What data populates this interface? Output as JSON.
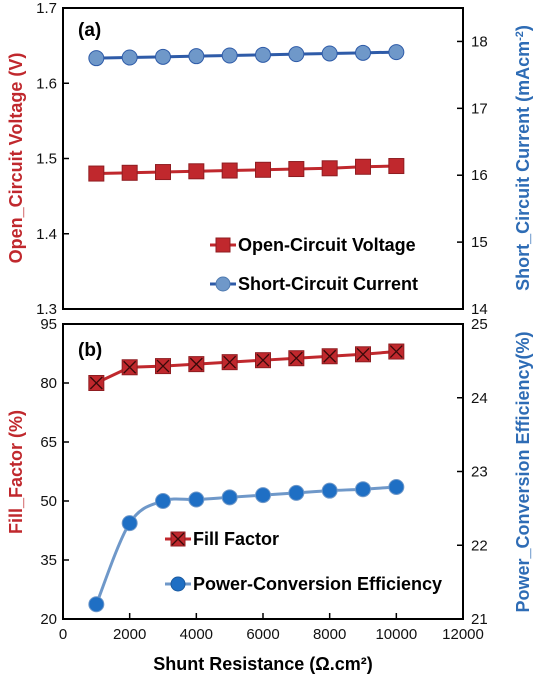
{
  "chart_data": [
    {
      "type": "line",
      "panel_label": "(a)",
      "x": [
        1000,
        2000,
        3000,
        4000,
        5000,
        6000,
        7000,
        8000,
        9000,
        10000
      ],
      "xlim": [
        0,
        12000
      ],
      "ylabel_left": "Open_Circuit Voltage (V)",
      "ylabel_right_main": "Short_Circuit Current (mAcm",
      "ylabel_right_sup": "-2",
      "ylabel_right_end": ")",
      "ylim_left": [
        1.3,
        1.7
      ],
      "ylim_right": [
        14,
        18.5
      ],
      "yticks_left": [
        "1.3",
        "1.4",
        "1.5",
        "1.6",
        "1.7"
      ],
      "yticks_right": [
        "14",
        "15",
        "16",
        "17",
        "18"
      ],
      "series": [
        {
          "name": "Open-Circuit Voltage",
          "axis": "left",
          "marker": "square",
          "color": "#c0282d",
          "values": [
            1.48,
            1.481,
            1.482,
            1.483,
            1.484,
            1.485,
            1.486,
            1.487,
            1.489,
            1.49
          ]
        },
        {
          "name": "Short-Circuit Current",
          "axis": "right",
          "marker": "circle",
          "color": "#6f98c9",
          "line_color": "#2e5ba8",
          "values": [
            17.75,
            17.76,
            17.77,
            17.78,
            17.79,
            17.8,
            17.81,
            17.82,
            17.83,
            17.84
          ]
        }
      ],
      "legend_position": "bottom-right"
    },
    {
      "type": "line",
      "panel_label": "(b)",
      "x": [
        1000,
        2000,
        3000,
        4000,
        5000,
        6000,
        7000,
        8000,
        9000,
        10000
      ],
      "xlim": [
        0,
        12000
      ],
      "xticks": [
        "0",
        "2000",
        "4000",
        "6000",
        "8000",
        "10000",
        "12000"
      ],
      "xlabel": "Shunt Resistance (Ω.cm²)",
      "ylabel_left": "Fill_Factor (%)",
      "ylabel_right": "Power_Conversion Efficiency(%)",
      "ylim_left": [
        20,
        95
      ],
      "ylim_right": [
        21,
        25
      ],
      "yticks_left": [
        "20",
        "35",
        "50",
        "65",
        "80",
        "95"
      ],
      "yticks_right": [
        "21",
        "22",
        "23",
        "24",
        "25"
      ],
      "series": [
        {
          "name": "Fill Factor",
          "axis": "left",
          "marker": "square-x",
          "color": "#c0282d",
          "values": [
            80,
            84,
            84.3,
            84.8,
            85.3,
            85.8,
            86.3,
            86.8,
            87.3,
            88
          ]
        },
        {
          "name": "Power-Conversion Efficiency",
          "axis": "right",
          "marker": "circle",
          "color": "#1f6fc4",
          "line_color": "#6f98c9",
          "values": [
            21.2,
            22.3,
            22.6,
            22.62,
            22.65,
            22.68,
            22.71,
            22.74,
            22.76,
            22.79
          ]
        }
      ],
      "legend_position": "center-right"
    }
  ]
}
